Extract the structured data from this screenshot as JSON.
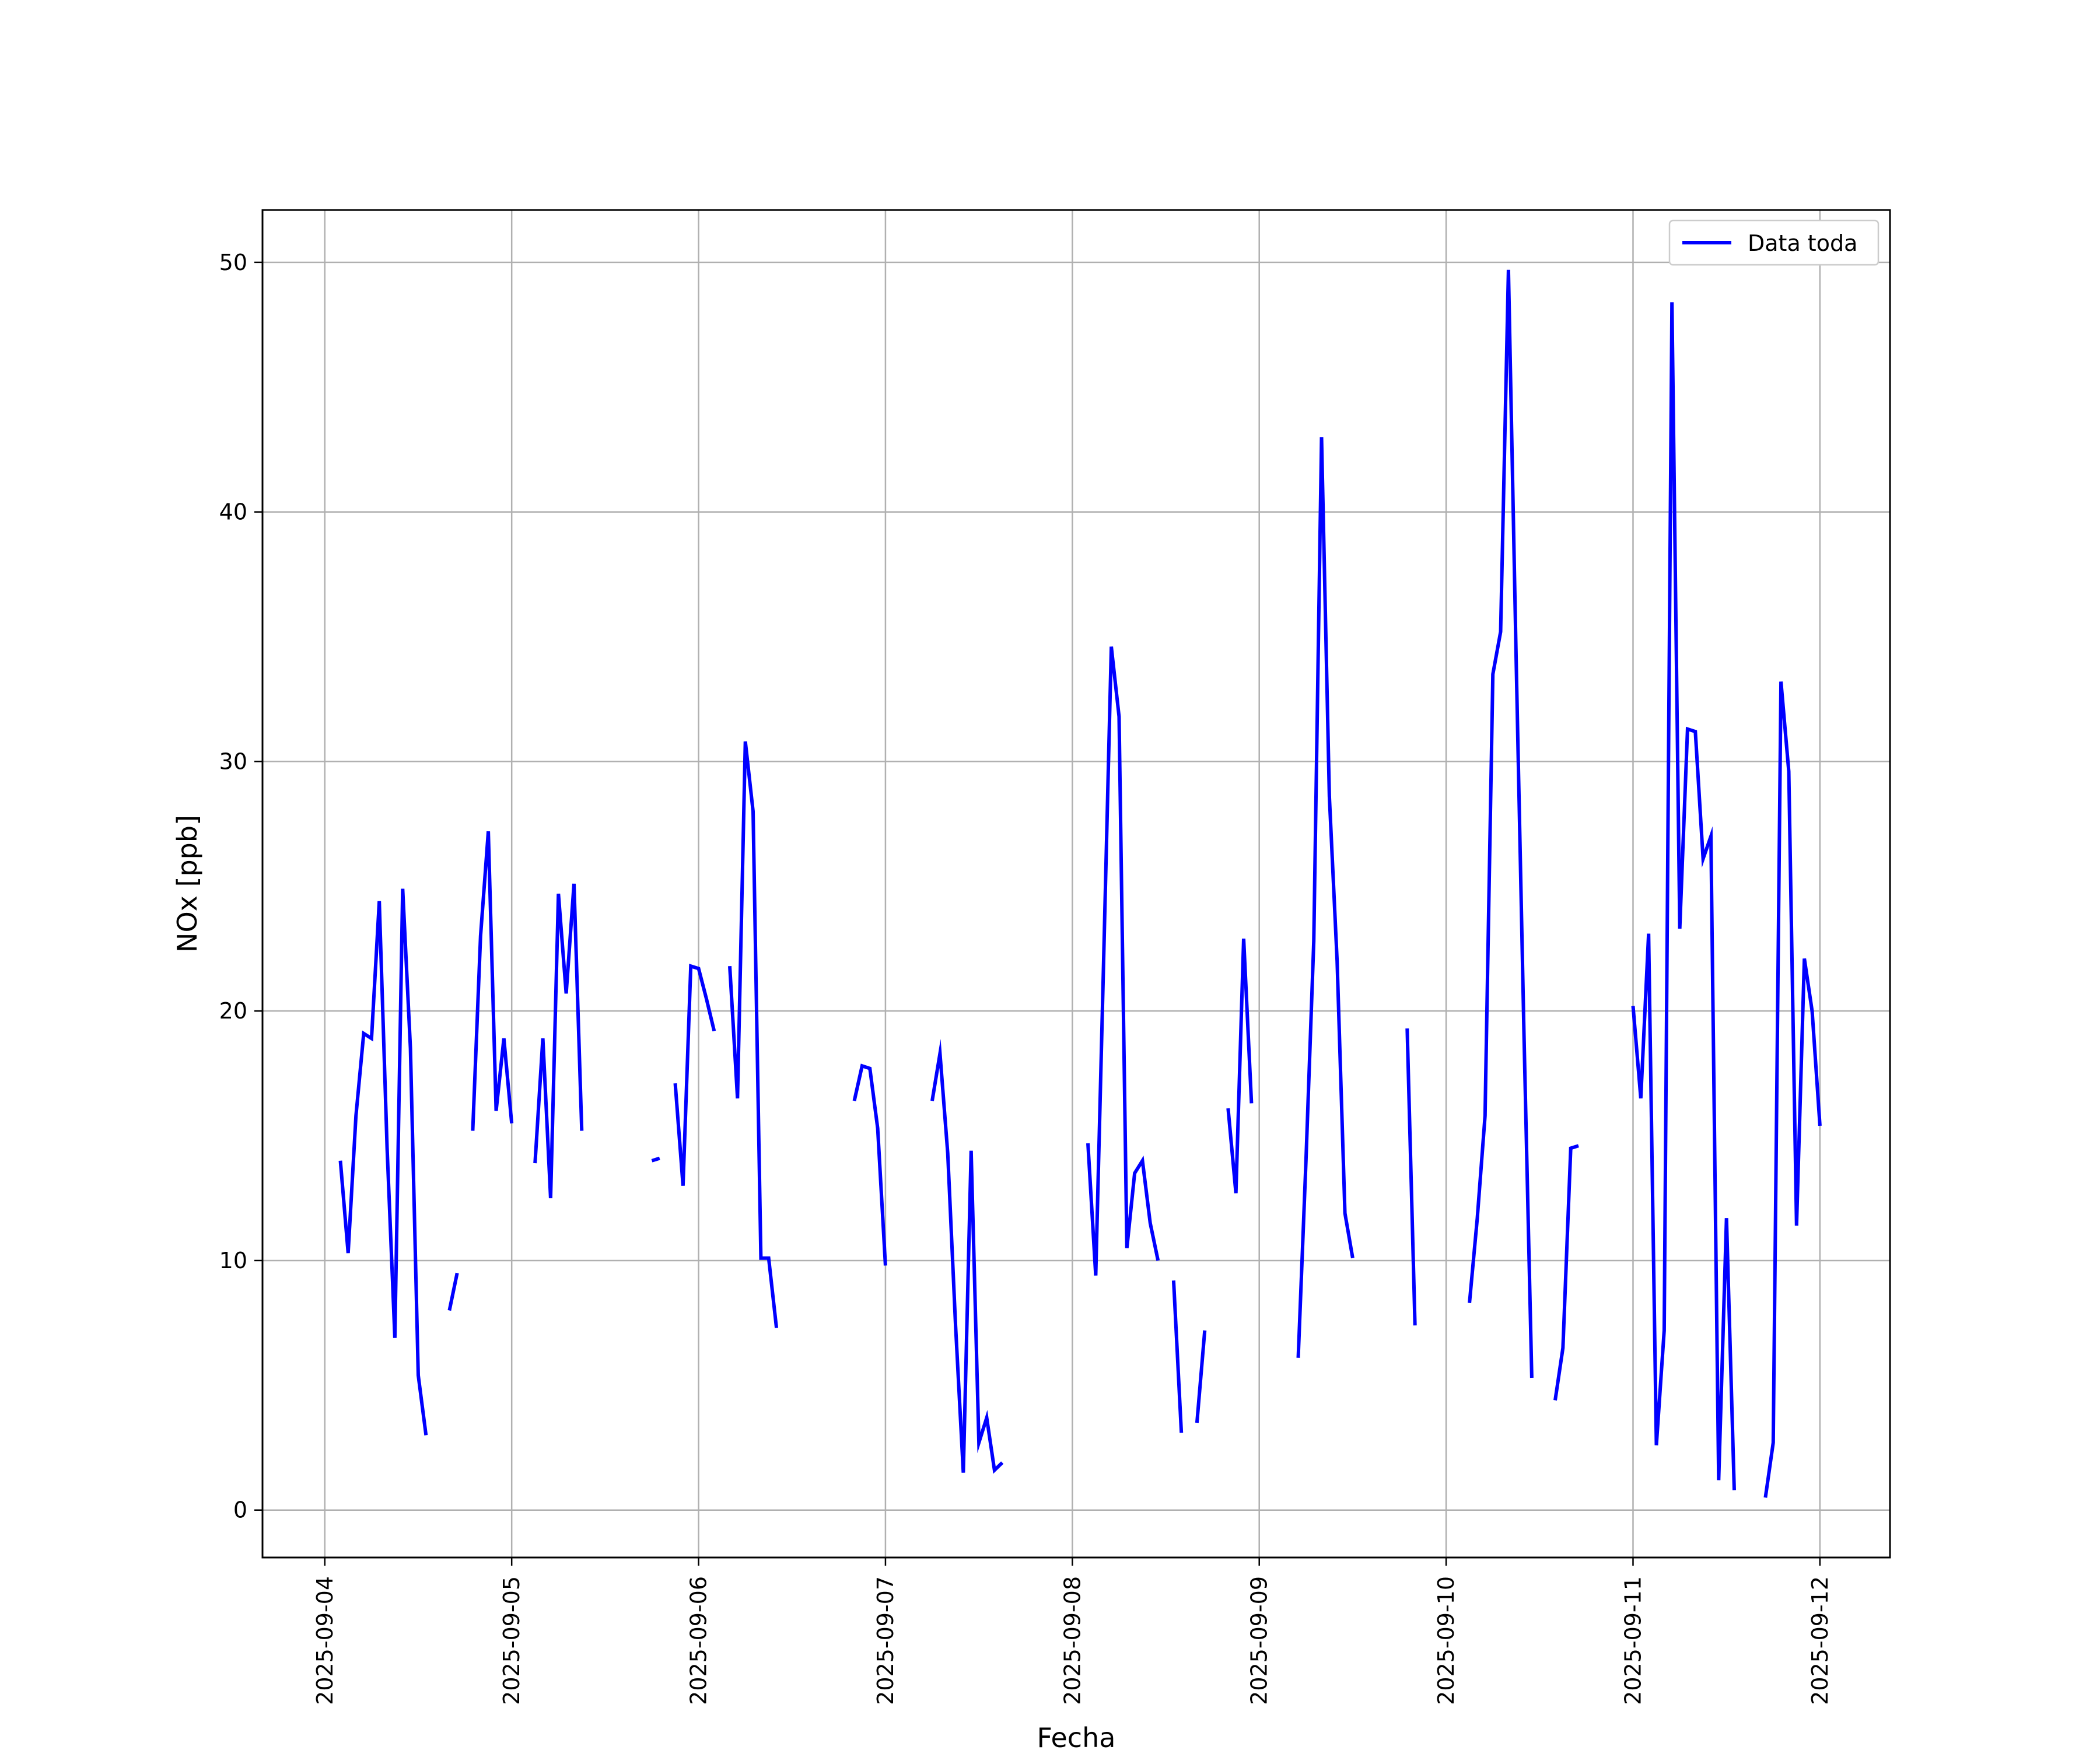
{
  "chart_data": {
    "type": "line",
    "xlabel": "Fecha",
    "ylabel": "NOx [ppb]",
    "x_unit": "date",
    "xlim": [
      "2025-09-03T16:00",
      "2025-09-12T09:00"
    ],
    "ylim": [
      -1.9,
      52.1
    ],
    "x_ticks": [
      "2025-09-04",
      "2025-09-05",
      "2025-09-06",
      "2025-09-07",
      "2025-09-08",
      "2025-09-09",
      "2025-09-10",
      "2025-09-11",
      "2025-09-12"
    ],
    "y_ticks": [
      0,
      10,
      20,
      30,
      40,
      50
    ],
    "y_tick_labels": [
      "0",
      "10",
      "20",
      "30",
      "40",
      "50"
    ],
    "grid": true,
    "legend_position": "top-right",
    "series": [
      {
        "name": "Data toda",
        "color": "#0000ff",
        "segments": [
          [
            [
              "2025-09-04T02:00",
              14.0
            ],
            [
              "2025-09-04T03:00",
              10.3
            ],
            [
              "2025-09-04T04:00",
              15.8
            ],
            [
              "2025-09-04T05:00",
              19.1
            ],
            [
              "2025-09-04T06:00",
              18.9
            ],
            [
              "2025-09-04T07:00",
              24.4
            ],
            [
              "2025-09-04T08:00",
              14.5
            ],
            [
              "2025-09-04T09:00",
              6.9
            ],
            [
              "2025-09-04T10:00",
              24.9
            ],
            [
              "2025-09-04T11:00",
              18.5
            ],
            [
              "2025-09-04T12:00",
              5.4
            ],
            [
              "2025-09-04T13:00",
              3.0
            ]
          ],
          [
            [
              "2025-09-04T16:00",
              8.0
            ],
            [
              "2025-09-04T17:00",
              9.5
            ]
          ],
          [
            [
              "2025-09-04T19:00",
              15.2
            ],
            [
              "2025-09-04T20:00",
              23.0
            ],
            [
              "2025-09-04T21:00",
              27.2
            ],
            [
              "2025-09-04T22:00",
              16.0
            ],
            [
              "2025-09-04T23:00",
              18.9
            ],
            [
              "2025-09-05T00:00",
              15.5
            ]
          ],
          [
            [
              "2025-09-05T03:00",
              13.9
            ],
            [
              "2025-09-05T04:00",
              18.9
            ],
            [
              "2025-09-05T05:00",
              12.5
            ],
            [
              "2025-09-05T06:00",
              24.7
            ],
            [
              "2025-09-05T07:00",
              20.7
            ],
            [
              "2025-09-05T08:00",
              25.1
            ],
            [
              "2025-09-05T09:00",
              15.2
            ]
          ],
          [
            [
              "2025-09-05T18:00",
              14.0
            ],
            [
              "2025-09-05T19:00",
              14.1
            ]
          ],
          [
            [
              "2025-09-05T21:00",
              17.1
            ],
            [
              "2025-09-05T22:00",
              13.0
            ],
            [
              "2025-09-05T23:00",
              21.8
            ],
            [
              "2025-09-06T00:00",
              21.7
            ],
            [
              "2025-09-06T01:00",
              20.5
            ],
            [
              "2025-09-06T02:00",
              19.2
            ]
          ],
          [
            [
              "2025-09-06T04:00",
              21.8
            ],
            [
              "2025-09-06T05:00",
              16.5
            ],
            [
              "2025-09-06T06:00",
              30.8
            ],
            [
              "2025-09-06T07:00",
              28.0
            ],
            [
              "2025-09-06T08:00",
              10.1
            ],
            [
              "2025-09-06T09:00",
              10.1
            ],
            [
              "2025-09-06T10:00",
              7.3
            ]
          ],
          [
            [
              "2025-09-06T20:00",
              16.4
            ],
            [
              "2025-09-06T21:00",
              17.8
            ],
            [
              "2025-09-06T22:00",
              17.7
            ],
            [
              "2025-09-06T23:00",
              15.3
            ],
            [
              "2025-09-07T00:00",
              9.8
            ]
          ],
          [
            [
              "2025-09-07T06:00",
              16.4
            ],
            [
              "2025-09-07T07:00",
              18.3
            ],
            [
              "2025-09-07T08:00",
              14.3
            ],
            [
              "2025-09-07T09:00",
              7.4
            ],
            [
              "2025-09-07T10:00",
              1.5
            ],
            [
              "2025-09-07T11:00",
              14.4
            ],
            [
              "2025-09-07T12:00",
              2.7
            ],
            [
              "2025-09-07T13:00",
              3.7
            ],
            [
              "2025-09-07T14:00",
              1.6
            ],
            [
              "2025-09-07T15:00",
              1.9
            ]
          ],
          [
            [
              "2025-09-08T02:00",
              14.7
            ],
            [
              "2025-09-08T03:00",
              9.4
            ],
            [
              "2025-09-08T04:00",
              21.8
            ],
            [
              "2025-09-08T05:00",
              34.6
            ],
            [
              "2025-09-08T06:00",
              31.8
            ],
            [
              "2025-09-08T07:00",
              10.5
            ],
            [
              "2025-09-08T08:00",
              13.5
            ],
            [
              "2025-09-08T09:00",
              14.0
            ],
            [
              "2025-09-08T10:00",
              11.5
            ],
            [
              "2025-09-08T11:00",
              10.0
            ]
          ],
          [
            [
              "2025-09-08T13:00",
              9.2
            ],
            [
              "2025-09-08T14:00",
              3.1
            ]
          ],
          [
            [
              "2025-09-08T16:00",
              3.5
            ],
            [
              "2025-09-08T17:00",
              7.2
            ]
          ],
          [
            [
              "2025-09-08T20:00",
              16.1
            ],
            [
              "2025-09-08T21:00",
              12.7
            ],
            [
              "2025-09-08T22:00",
              22.9
            ],
            [
              "2025-09-08T23:00",
              16.3
            ]
          ],
          [
            [
              "2025-09-09T05:00",
              6.1
            ],
            [
              "2025-09-09T06:00",
              14.0
            ],
            [
              "2025-09-09T07:00",
              22.8
            ],
            [
              "2025-09-09T08:00",
              43.0
            ],
            [
              "2025-09-09T09:00",
              28.6
            ],
            [
              "2025-09-09T10:00",
              22.0
            ],
            [
              "2025-09-09T11:00",
              11.9
            ],
            [
              "2025-09-09T12:00",
              10.1
            ]
          ],
          [
            [
              "2025-09-09T19:00",
              19.3
            ],
            [
              "2025-09-09T20:00",
              7.4
            ]
          ],
          [
            [
              "2025-09-10T03:00",
              8.3
            ],
            [
              "2025-09-10T04:00",
              11.7
            ],
            [
              "2025-09-10T05:00",
              15.8
            ],
            [
              "2025-09-10T06:00",
              33.5
            ],
            [
              "2025-09-10T07:00",
              35.2
            ],
            [
              "2025-09-10T08:00",
              49.7
            ],
            [
              "2025-09-10T09:00",
              34.0
            ],
            [
              "2025-09-10T10:00",
              19.0
            ],
            [
              "2025-09-10T11:00",
              5.3
            ]
          ],
          [
            [
              "2025-09-10T14:00",
              4.4
            ],
            [
              "2025-09-10T15:00",
              6.5
            ],
            [
              "2025-09-10T16:00",
              14.5
            ],
            [
              "2025-09-10T17:00",
              14.6
            ]
          ],
          [
            [
              "2025-09-11T00:00",
              20.2
            ],
            [
              "2025-09-11T01:00",
              16.5
            ],
            [
              "2025-09-11T02:00",
              23.1
            ],
            [
              "2025-09-11T03:00",
              2.6
            ],
            [
              "2025-09-11T04:00",
              7.2
            ],
            [
              "2025-09-11T05:00",
              48.4
            ],
            [
              "2025-09-11T06:00",
              23.3
            ],
            [
              "2025-09-11T07:00",
              31.3
            ],
            [
              "2025-09-11T08:00",
              31.2
            ],
            [
              "2025-09-11T09:00",
              26.1
            ],
            [
              "2025-09-11T10:00",
              27.0
            ],
            [
              "2025-09-11T11:00",
              1.2
            ],
            [
              "2025-09-11T12:00",
              11.7
            ],
            [
              "2025-09-11T13:00",
              0.8
            ]
          ],
          [
            [
              "2025-09-11T17:00",
              0.5
            ],
            [
              "2025-09-11T18:00",
              2.7
            ],
            [
              "2025-09-11T19:00",
              33.2
            ],
            [
              "2025-09-11T20:00",
              29.6
            ],
            [
              "2025-09-11T21:00",
              11.4
            ],
            [
              "2025-09-11T22:00",
              22.1
            ],
            [
              "2025-09-11T23:00",
              20.0
            ],
            [
              "2025-09-12T00:00",
              15.4
            ]
          ]
        ]
      }
    ]
  }
}
